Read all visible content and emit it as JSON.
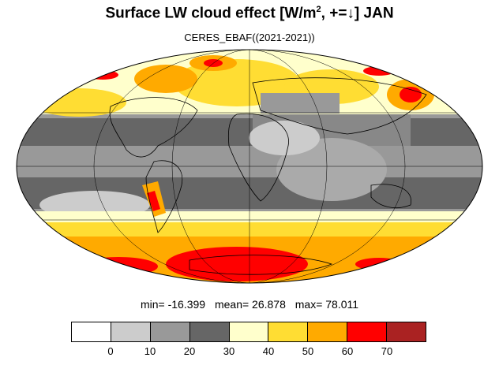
{
  "title": {
    "main": "Surface LW cloud effect [W/m",
    "sup": "2",
    "rest": ", +=↓]  JAN"
  },
  "subtitle": "CERES_EBAF((2021-2021))",
  "stats": {
    "min_text": "min= -16.399",
    "mean_text": "mean=  26.878",
    "max_text": "max= 78.011"
  },
  "colorbar": {
    "colors": [
      "#ffffff",
      "#cccccc",
      "#999999",
      "#666666",
      "#ffffcc",
      "#ffdd33",
      "#ffaa00",
      "#ff0000",
      "#aa2222"
    ],
    "ticks": [
      "0",
      "10",
      "20",
      "30",
      "40",
      "50",
      "60",
      "70"
    ]
  }
}
